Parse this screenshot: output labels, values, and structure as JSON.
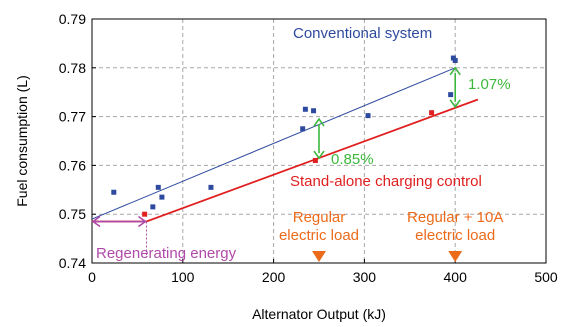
{
  "chart_data": {
    "type": "scatter",
    "xlabel": "Alternator Output (kJ)",
    "ylabel": "Fuel consumption (L)",
    "xlim": [
      0,
      500
    ],
    "ylim": [
      0.74,
      0.79
    ],
    "x_ticks": [
      0,
      100,
      200,
      300,
      400,
      500
    ],
    "y_ticks": [
      0.74,
      0.75,
      0.76,
      0.77,
      0.78,
      0.79
    ],
    "grid": "dashed",
    "series": [
      {
        "name": "Conventional system",
        "color": "#2e4a9e",
        "points": [
          {
            "x": 24,
            "y": 0.7545
          },
          {
            "x": 73,
            "y": 0.7555
          },
          {
            "x": 77,
            "y": 0.7535
          },
          {
            "x": 67,
            "y": 0.7515
          },
          {
            "x": 131,
            "y": 0.7555
          },
          {
            "x": 232,
            "y": 0.7675
          },
          {
            "x": 235,
            "y": 0.7715
          },
          {
            "x": 244,
            "y": 0.7712
          },
          {
            "x": 304,
            "y": 0.7702
          },
          {
            "x": 395,
            "y": 0.7745
          },
          {
            "x": 398,
            "y": 0.782
          },
          {
            "x": 400,
            "y": 0.7815
          }
        ],
        "fit": {
          "x": [
            0,
            400
          ],
          "y": [
            0.749,
            0.78
          ]
        }
      },
      {
        "name": "Stand-alone charging control",
        "color": "#e02020",
        "points": [
          {
            "x": 58,
            "y": 0.75
          },
          {
            "x": 246,
            "y": 0.761
          },
          {
            "x": 374,
            "y": 0.7708
          }
        ],
        "fit": {
          "x": [
            0,
            60,
            425
          ],
          "y": [
            0.7485,
            0.7485,
            0.7735
          ]
        }
      }
    ],
    "annotations": {
      "gap_mid": {
        "label": "0.85%",
        "x": 250,
        "y_top": 0.7695,
        "y_bottom": 0.7615,
        "color": "#3cb83c"
      },
      "gap_right": {
        "label": "1.07%",
        "x": 400,
        "y_top": 0.78,
        "y_bottom": 0.772,
        "color": "#3cb83c"
      },
      "regen": {
        "label": "Regenerating energy",
        "x_start": 0,
        "x_end": 60,
        "y": 0.7485,
        "color": "#b04aa8"
      },
      "load1": {
        "label_line1": "Regular",
        "label_line2": "electric load",
        "x": 250,
        "color": "#ec6b1b"
      },
      "load2": {
        "label_line1": "Regular + 10A",
        "label_line2": "electric load",
        "x": 400,
        "color": "#ec6b1b"
      }
    }
  }
}
